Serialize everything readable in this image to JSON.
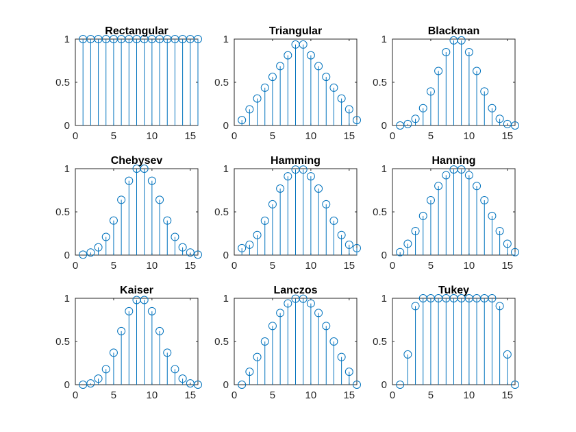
{
  "figure": {
    "grid": "3x3",
    "colors": {
      "series": "#0072bd",
      "axes": "#262626",
      "title": "#000000",
      "background": "#ffffff"
    }
  },
  "chart_data": [
    {
      "type": "stem",
      "title": "Rectangular",
      "xlim": [
        0,
        16
      ],
      "ylim": [
        0,
        1
      ],
      "xticks": [
        0,
        5,
        10,
        15
      ],
      "yticks": [
        0,
        0.5,
        1
      ],
      "x": [
        1,
        2,
        3,
        4,
        5,
        6,
        7,
        8,
        9,
        10,
        11,
        12,
        13,
        14,
        15,
        16
      ],
      "values": [
        1,
        1,
        1,
        1,
        1,
        1,
        1,
        1,
        1,
        1,
        1,
        1,
        1,
        1,
        1,
        1
      ]
    },
    {
      "type": "stem",
      "title": "Triangular",
      "xlim": [
        0,
        16
      ],
      "ylim": [
        0,
        1
      ],
      "xticks": [
        0,
        5,
        10,
        15
      ],
      "yticks": [
        0,
        0.5,
        1
      ],
      "x": [
        1,
        2,
        3,
        4,
        5,
        6,
        7,
        8,
        9,
        10,
        11,
        12,
        13,
        14,
        15,
        16
      ],
      "values": [
        0.0625,
        0.1875,
        0.3125,
        0.4375,
        0.5625,
        0.6875,
        0.8125,
        0.9375,
        0.9375,
        0.8125,
        0.6875,
        0.5625,
        0.4375,
        0.3125,
        0.1875,
        0.0625
      ]
    },
    {
      "type": "stem",
      "title": "Blackman",
      "xlim": [
        0,
        16
      ],
      "ylim": [
        0,
        1
      ],
      "xticks": [
        0,
        5,
        10,
        15
      ],
      "yticks": [
        0,
        0.5,
        1
      ],
      "x": [
        1,
        2,
        3,
        4,
        5,
        6,
        7,
        8,
        9,
        10,
        11,
        12,
        13,
        14,
        15,
        16
      ],
      "values": [
        0,
        0.017,
        0.077,
        0.2,
        0.394,
        0.631,
        0.849,
        0.985,
        0.985,
        0.849,
        0.631,
        0.394,
        0.2,
        0.077,
        0.017,
        0
      ]
    },
    {
      "type": "stem",
      "title": "Chebysev",
      "xlim": [
        0,
        16
      ],
      "ylim": [
        0,
        1
      ],
      "xticks": [
        0,
        5,
        10,
        15
      ],
      "yticks": [
        0,
        0.5,
        1
      ],
      "x": [
        1,
        2,
        3,
        4,
        5,
        6,
        7,
        8,
        9,
        10,
        11,
        12,
        13,
        14,
        15,
        16
      ],
      "values": [
        0.005,
        0.03,
        0.09,
        0.21,
        0.4,
        0.64,
        0.86,
        1.0,
        1.0,
        0.86,
        0.64,
        0.4,
        0.21,
        0.09,
        0.03,
        0.005
      ]
    },
    {
      "type": "stem",
      "title": "Hamming",
      "xlim": [
        0,
        16
      ],
      "ylim": [
        0,
        1
      ],
      "xticks": [
        0,
        5,
        10,
        15
      ],
      "yticks": [
        0,
        0.5,
        1
      ],
      "x": [
        1,
        2,
        3,
        4,
        5,
        6,
        7,
        8,
        9,
        10,
        11,
        12,
        13,
        14,
        15,
        16
      ],
      "values": [
        0.08,
        0.12,
        0.232,
        0.398,
        0.588,
        0.77,
        0.912,
        0.99,
        0.99,
        0.912,
        0.77,
        0.588,
        0.398,
        0.232,
        0.12,
        0.08
      ]
    },
    {
      "type": "stem",
      "title": "Hanning",
      "xlim": [
        0,
        16
      ],
      "ylim": [
        0,
        1
      ],
      "xticks": [
        0,
        5,
        10,
        15
      ],
      "yticks": [
        0,
        0.5,
        1
      ],
      "x": [
        1,
        2,
        3,
        4,
        5,
        6,
        7,
        8,
        9,
        10,
        11,
        12,
        13,
        14,
        15,
        16
      ],
      "values": [
        0.034,
        0.131,
        0.278,
        0.453,
        0.635,
        0.8,
        0.925,
        0.991,
        0.991,
        0.925,
        0.8,
        0.635,
        0.453,
        0.278,
        0.131,
        0.034
      ]
    },
    {
      "type": "stem",
      "title": "Kaiser",
      "xlim": [
        0,
        16
      ],
      "ylim": [
        0,
        1
      ],
      "xticks": [
        0,
        5,
        10,
        15
      ],
      "yticks": [
        0,
        0.5,
        1
      ],
      "x": [
        1,
        2,
        3,
        4,
        5,
        6,
        7,
        8,
        9,
        10,
        11,
        12,
        13,
        14,
        15,
        16
      ],
      "values": [
        0.0,
        0.015,
        0.07,
        0.18,
        0.37,
        0.62,
        0.85,
        0.98,
        0.98,
        0.85,
        0.62,
        0.37,
        0.18,
        0.07,
        0.015,
        0.0
      ]
    },
    {
      "type": "stem",
      "title": "Lanczos",
      "xlim": [
        0,
        16
      ],
      "ylim": [
        0,
        1
      ],
      "xticks": [
        0,
        5,
        10,
        15
      ],
      "yticks": [
        0,
        0.5,
        1
      ],
      "x": [
        1,
        2,
        3,
        4,
        5,
        6,
        7,
        8,
        9,
        10,
        11,
        12,
        13,
        14,
        15,
        16
      ],
      "values": [
        0,
        0.15,
        0.32,
        0.5,
        0.68,
        0.83,
        0.94,
        0.995,
        0.995,
        0.94,
        0.83,
        0.68,
        0.5,
        0.32,
        0.15,
        0
      ]
    },
    {
      "type": "stem",
      "title": "Tukey",
      "xlim": [
        0,
        16
      ],
      "ylim": [
        0,
        1
      ],
      "xticks": [
        0,
        5,
        10,
        15
      ],
      "yticks": [
        0,
        0.5,
        1
      ],
      "x": [
        1,
        2,
        3,
        4,
        5,
        6,
        7,
        8,
        9,
        10,
        11,
        12,
        13,
        14,
        15,
        16
      ],
      "values": [
        0,
        0.35,
        0.91,
        1,
        1,
        1,
        1,
        1,
        1,
        1,
        1,
        1,
        1,
        0.91,
        0.35,
        0
      ]
    }
  ]
}
